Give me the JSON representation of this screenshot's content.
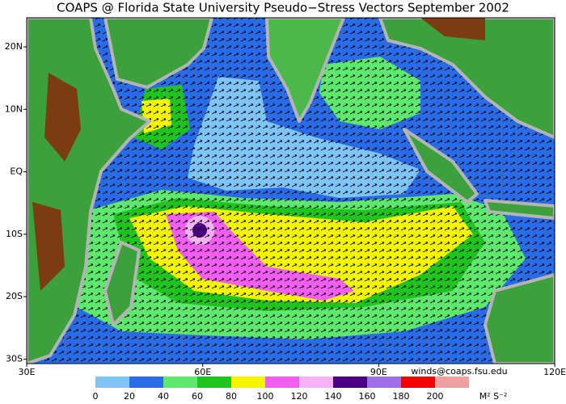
{
  "header": {
    "title": "COAPS @ Florida State University Pseudo−Stress Vectors September 2002"
  },
  "map": {
    "lon_labels": [
      "30E",
      "60E",
      "90E",
      "120E"
    ],
    "lat_labels": [
      "20N",
      "10N",
      "EQ",
      "10S",
      "20S",
      "30S"
    ]
  },
  "colorbar": {
    "labels": [
      "0",
      "20",
      "40",
      "60",
      "80",
      "100",
      "120",
      "140",
      "160",
      "180",
      "200"
    ],
    "unit": "M² S⁻²"
  },
  "credit": "winds@coaps.fsu.edu"
}
